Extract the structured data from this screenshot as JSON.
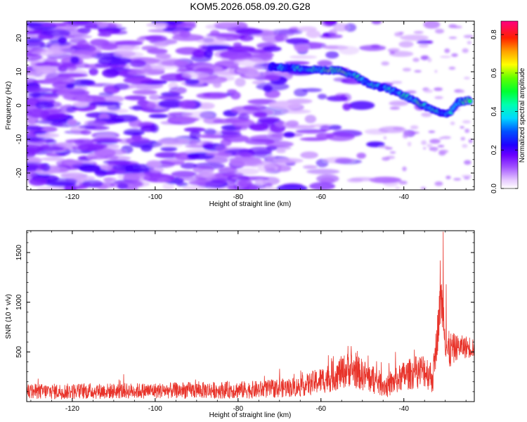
{
  "title": "KOM5.2026.058.09.20.G28",
  "chart_data": [
    {
      "type": "heatmap",
      "title": "KOM5.2026.058.09.20.G28",
      "xlabel": "Height of straight line (km)",
      "ylabel": "Frequency (Hz)",
      "xlim": [
        -131,
        -23
      ],
      "ylim": [
        -25,
        25
      ],
      "xticks": [
        -120,
        -100,
        -80,
        -60,
        -40
      ],
      "yticks": [
        -20,
        -10,
        0,
        10,
        20
      ],
      "xtick_labels": [
        "-120",
        "-100",
        "-80",
        "-60",
        "-40"
      ],
      "ytick_labels": [
        "-20",
        "-10",
        "0",
        "10",
        "20"
      ],
      "colorbar": {
        "label": "Normalized spectral amplitude",
        "range": [
          0,
          0.87
        ],
        "ticks": [
          0.0,
          0.2,
          0.4,
          0.6,
          0.8
        ],
        "tick_labels": [
          "0.0",
          "0.2",
          "0.4",
          "0.6",
          "0.8"
        ],
        "colormap": "rainbow (white-violet-blue-cyan-green-yellow-orange-red-magenta)"
      },
      "ridge": {
        "description": "strong frequency trace",
        "points": [
          {
            "x": -72,
            "y": 11.5,
            "amp": 0.3
          },
          {
            "x": -66,
            "y": 11.0,
            "amp": 0.35
          },
          {
            "x": -60,
            "y": 10.5,
            "amp": 0.45
          },
          {
            "x": -56,
            "y": 10.5,
            "amp": 0.6
          },
          {
            "x": -52,
            "y": 9.0,
            "amp": 0.45
          },
          {
            "x": -48,
            "y": 6.0,
            "amp": 0.4
          },
          {
            "x": -44,
            "y": 5.0,
            "amp": 0.35
          },
          {
            "x": -40,
            "y": 3.0,
            "amp": 0.4
          },
          {
            "x": -36,
            "y": 0.5,
            "amp": 0.5
          },
          {
            "x": -32,
            "y": -2.0,
            "amp": 0.4
          },
          {
            "x": -29,
            "y": -2.5,
            "amp": 0.35
          },
          {
            "x": -27,
            "y": 1.0,
            "amp": 0.4
          },
          {
            "x": -24,
            "y": 1.5,
            "amp": 0.55
          }
        ]
      },
      "noise_field": {
        "x_range": [
          -131,
          -45
        ],
        "y_range": [
          -25,
          25
        ],
        "typical_amp": 0.15
      }
    },
    {
      "type": "line",
      "xlabel": "Height of straight line (km)",
      "ylabel": "SNR (10 * v/v)",
      "xlim": [
        -131,
        -23
      ],
      "ylim": [
        0,
        1720
      ],
      "xticks": [
        -120,
        -100,
        -80,
        -60,
        -40
      ],
      "yticks": [
        500,
        1000,
        1500
      ],
      "xtick_labels": [
        "-120",
        "-100",
        "-80",
        "-60",
        "-40"
      ],
      "ytick_labels": [
        "500",
        "1000",
        "1500"
      ],
      "series": [
        {
          "name": "SNR",
          "color": "#e8332a",
          "envelope": [
            {
              "x": -131,
              "base": 100,
              "amp": 80
            },
            {
              "x": -100,
              "base": 110,
              "amp": 80
            },
            {
              "x": -75,
              "base": 120,
              "amp": 90
            },
            {
              "x": -65,
              "base": 150,
              "amp": 100
            },
            {
              "x": -58,
              "base": 240,
              "amp": 150
            },
            {
              "x": -53,
              "base": 330,
              "amp": 180
            },
            {
              "x": -48,
              "base": 230,
              "amp": 150
            },
            {
              "x": -44,
              "base": 150,
              "amp": 110
            },
            {
              "x": -40,
              "base": 260,
              "amp": 150
            },
            {
              "x": -35,
              "base": 320,
              "amp": 180
            },
            {
              "x": -33,
              "base": 240,
              "amp": 160
            },
            {
              "x": -31,
              "base": 1050,
              "amp": 250
            },
            {
              "x": -29.5,
              "base": 500,
              "amp": 220
            },
            {
              "x": -27,
              "base": 550,
              "amp": 120
            },
            {
              "x": -23,
              "base": 550,
              "amp": 110
            }
          ],
          "peaks": [
            {
              "x": -30.5,
              "y": 1710
            },
            {
              "x": -31.2,
              "y": 1420
            },
            {
              "x": -29.8,
              "y": 1180
            },
            {
              "x": -53.5,
              "y": 560
            },
            {
              "x": -70,
              "y": 330
            },
            {
              "x": -42,
              "y": 500
            }
          ]
        }
      ]
    }
  ]
}
